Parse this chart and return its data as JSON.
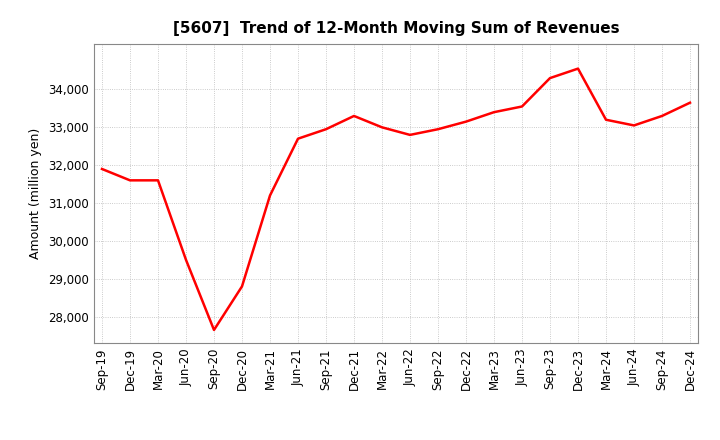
{
  "title": "[5607]  Trend of 12-Month Moving Sum of Revenues",
  "ylabel": "Amount (million yen)",
  "line_color": "#FF0000",
  "background_color": "#FFFFFF",
  "plot_bg_color": "#FFFFFF",
  "grid_color": "#BBBBBB",
  "x_labels": [
    "Sep-19",
    "Dec-19",
    "Mar-20",
    "Jun-20",
    "Sep-20",
    "Dec-20",
    "Mar-21",
    "Jun-21",
    "Sep-21",
    "Dec-21",
    "Mar-22",
    "Jun-22",
    "Sep-22",
    "Dec-22",
    "Mar-23",
    "Jun-23",
    "Sep-23",
    "Dec-23",
    "Mar-24",
    "Jun-24",
    "Sep-24",
    "Dec-24"
  ],
  "values": [
    31900,
    31600,
    31600,
    29500,
    27650,
    28800,
    31200,
    32700,
    32950,
    33300,
    33000,
    32800,
    32950,
    33150,
    33400,
    33550,
    34300,
    34550,
    33200,
    33050,
    33300,
    33650
  ],
  "ylim": [
    27300,
    35200
  ],
  "yticks": [
    28000,
    29000,
    30000,
    31000,
    32000,
    33000,
    34000
  ],
  "title_fontsize": 11,
  "axis_fontsize": 9,
  "tick_fontsize": 8.5
}
